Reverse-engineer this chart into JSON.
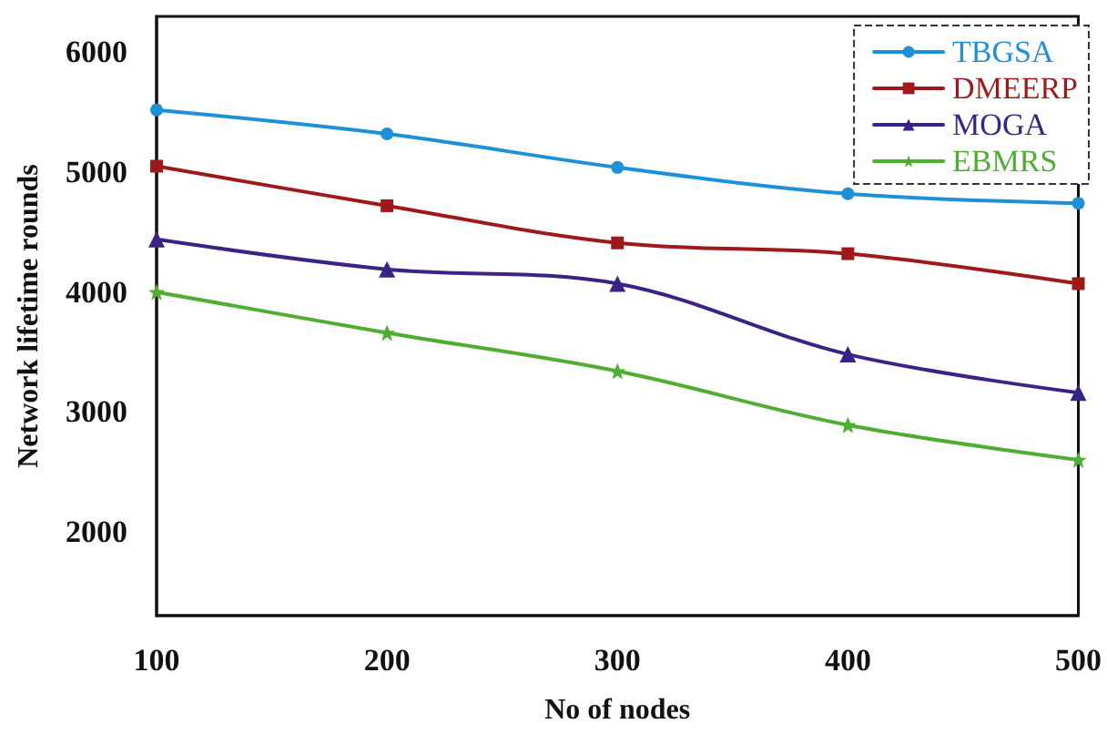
{
  "chart_data": {
    "type": "line",
    "xlabel": "No of nodes",
    "ylabel": "Network lifetime rounds",
    "x": [
      100,
      200,
      300,
      400,
      500
    ],
    "xlim": [
      100,
      500
    ],
    "xticks": [
      100,
      200,
      300,
      400,
      500
    ],
    "ylim": [
      1300,
      6300
    ],
    "yticks": [
      2000,
      3000,
      4000,
      5000,
      6000
    ],
    "grid": false,
    "legend": "top right",
    "series": [
      {
        "name": "TBGSA",
        "color": "#1e90d8",
        "marker": "circle",
        "values": [
          5520,
          5320,
          5040,
          4820,
          4740
        ]
      },
      {
        "name": "DMEERP",
        "color": "#9e1a1a",
        "marker": "square",
        "values": [
          5050,
          4720,
          4410,
          4320,
          4070
        ]
      },
      {
        "name": "MOGA",
        "color": "#3b2386",
        "marker": "triangle",
        "values": [
          4440,
          4190,
          4070,
          3480,
          3160
        ]
      },
      {
        "name": "EBMRS",
        "color": "#4fae32",
        "marker": "star",
        "values": [
          4000,
          3660,
          3340,
          2890,
          2600
        ]
      }
    ]
  }
}
